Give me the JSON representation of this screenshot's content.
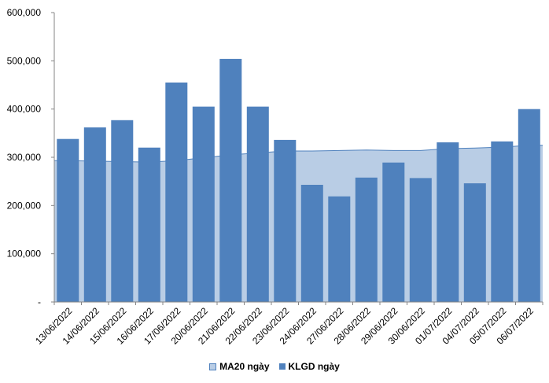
{
  "chart_data": {
    "type": "bar",
    "categories": [
      "13/06/2022",
      "14/06/2022",
      "15/06/2022",
      "16/06/2022",
      "17/06/2022",
      "20/06/2022",
      "21/06/2022",
      "22/06/2022",
      "23/06/2022",
      "24/06/2022",
      "27/06/2022",
      "28/06/2022",
      "29/06/2022",
      "30/06/2022",
      "01/07/2022",
      "04/07/2022",
      "05/07/2022",
      "06/07/2022"
    ],
    "series": [
      {
        "name": "KLGD ngày",
        "type": "bar",
        "color": "#4f81bd",
        "values": [
          338000,
          362000,
          377000,
          320000,
          455000,
          405000,
          504000,
          405000,
          336000,
          243000,
          219000,
          258000,
          289000,
          257000,
          331000,
          246000,
          333000,
          400000
        ]
      },
      {
        "name": "MA20 ngày",
        "type": "area",
        "color": "#b9cde5",
        "stroke": "#4f81bd",
        "values": [
          293000,
          292000,
          291000,
          290000,
          293000,
          299000,
          305000,
          309000,
          313000,
          313000,
          314000,
          315000,
          314000,
          314000,
          318000,
          319000,
          321000,
          325000
        ]
      }
    ],
    "y_ticks": [
      "-",
      "100,000",
      "200,000",
      "300,000",
      "400,000",
      "500,000",
      "600,000"
    ],
    "ylim": [
      0,
      600000
    ],
    "grid": false,
    "legend_position": "bottom",
    "legend": [
      "MA20 ngày",
      "KLGD ngày"
    ]
  }
}
